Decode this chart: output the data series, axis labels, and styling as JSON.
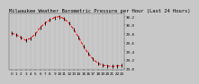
{
  "title": "Milwaukee Weather Barometric Pressure per Hour (Last 24 Hours)",
  "hours": [
    0,
    1,
    2,
    3,
    4,
    5,
    6,
    7,
    8,
    9,
    10,
    11,
    12,
    13,
    14,
    15,
    16,
    17,
    18,
    19,
    20,
    21,
    22,
    23
  ],
  "pressure": [
    29.82,
    29.78,
    29.72,
    29.65,
    29.7,
    29.8,
    29.95,
    30.05,
    30.12,
    30.18,
    30.2,
    30.15,
    30.05,
    29.9,
    29.72,
    29.52,
    29.35,
    29.22,
    29.12,
    29.08,
    29.06,
    29.05,
    29.06,
    29.07
  ],
  "ylim_min": 28.97,
  "ylim_max": 30.28,
  "yticks": [
    29.0,
    29.2,
    29.4,
    29.6,
    29.8,
    30.0,
    30.2
  ],
  "ytick_labels": [
    "29.0",
    "29.2",
    "29.4",
    "29.6",
    "29.8",
    "30.0",
    "30.2"
  ],
  "line_color": "#ff0000",
  "marker_color": "#000000",
  "bg_color": "#c8c8c8",
  "plot_bg_color": "#c8c8c8",
  "grid_color": "#888888",
  "title_color": "#000000",
  "title_fontsize": 4.0,
  "tick_fontsize": 3.0,
  "line_width": 0.7,
  "marker_size": 2.5
}
